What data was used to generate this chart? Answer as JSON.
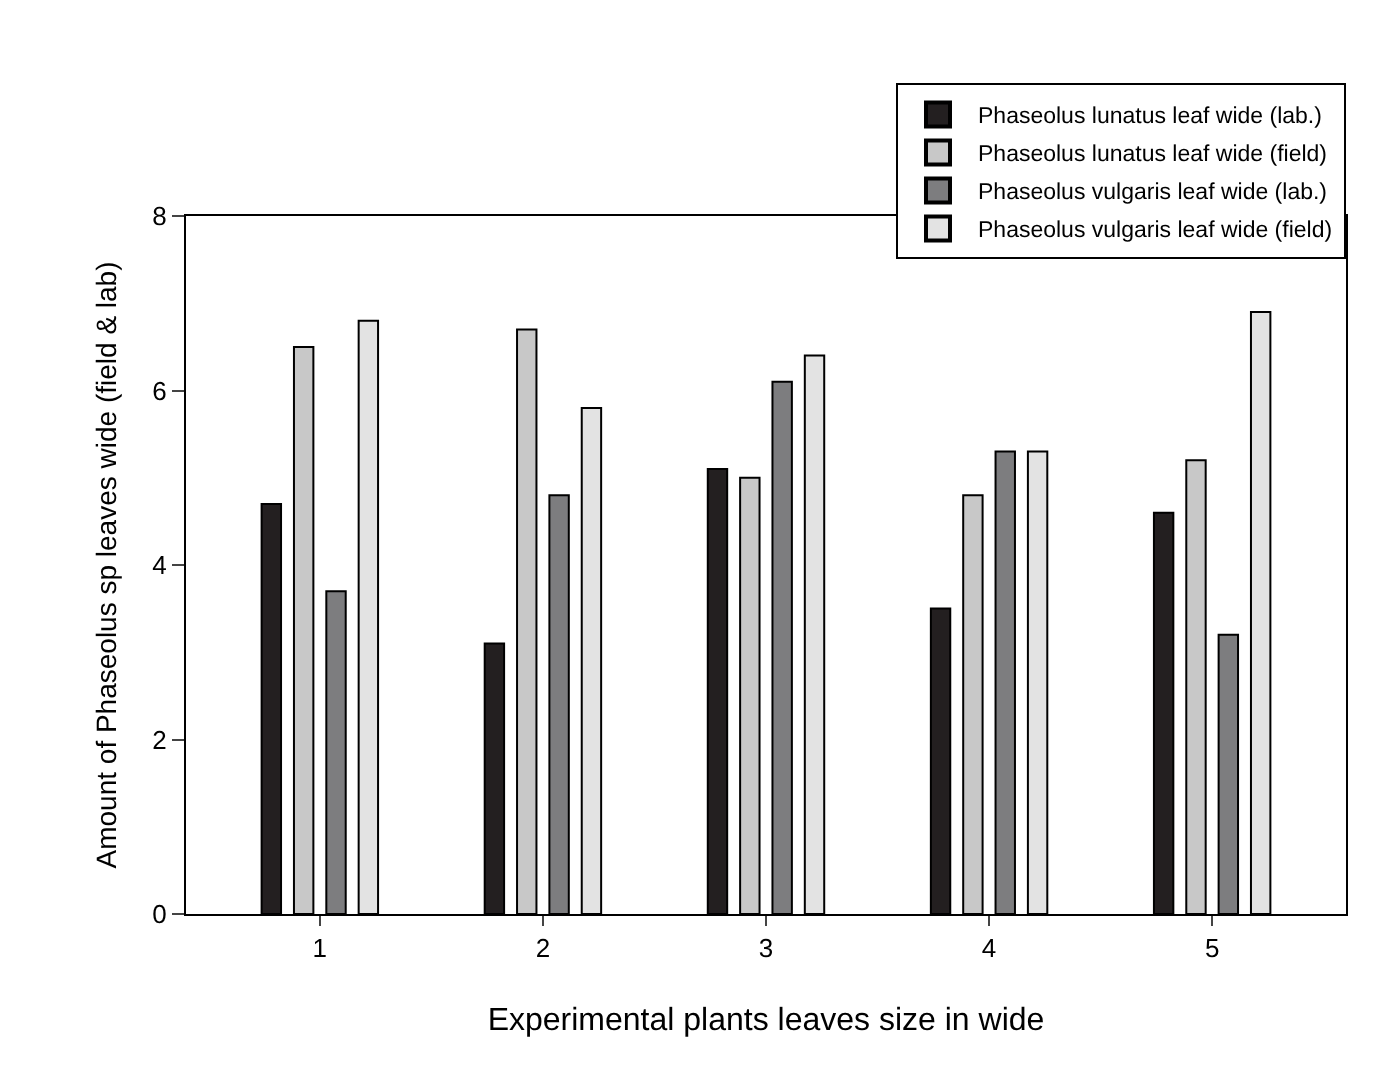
{
  "chart_data": {
    "type": "bar",
    "xlabel": "Experimental plants leaves size in wide",
    "ylabel": "Amount of Phaseolus sp leaves wide (field & lab)",
    "categories": [
      "1",
      "2",
      "3",
      "4",
      "5"
    ],
    "series": [
      {
        "name": "Phaseolus lunatus leaf wide (lab.)",
        "color": "#231f20",
        "values": [
          4.7,
          3.1,
          5.1,
          3.5,
          4.6
        ]
      },
      {
        "name": "Phaseolus lunatus leaf wide (field)",
        "color": "#c8c8c8",
        "values": [
          6.5,
          6.7,
          5.0,
          4.8,
          5.2
        ]
      },
      {
        "name": "Phaseolus vulgaris leaf wide (lab.)",
        "color": "#7d7d7f",
        "values": [
          3.7,
          4.8,
          6.1,
          5.3,
          3.2
        ]
      },
      {
        "name": "Phaseolus vulgaris leaf wide (field)",
        "color": "#e3e3e3",
        "values": [
          6.8,
          5.8,
          6.4,
          5.3,
          6.9
        ]
      }
    ],
    "ylim": [
      0,
      8
    ],
    "yticks": [
      0,
      2,
      4,
      6,
      8
    ],
    "grid": false,
    "legend": "top right"
  }
}
